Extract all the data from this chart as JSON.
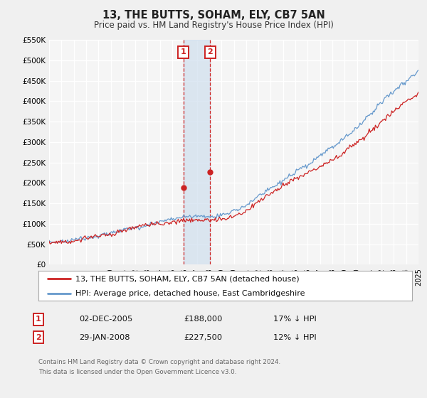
{
  "title": "13, THE BUTTS, SOHAM, ELY, CB7 5AN",
  "subtitle": "Price paid vs. HM Land Registry's House Price Index (HPI)",
  "legend_line1": "13, THE BUTTS, SOHAM, ELY, CB7 5AN (detached house)",
  "legend_line2": "HPI: Average price, detached house, East Cambridgeshire",
  "footnote1": "Contains HM Land Registry data © Crown copyright and database right 2024.",
  "footnote2": "This data is licensed under the Open Government Licence v3.0.",
  "sale1_date": "02-DEC-2005",
  "sale1_price": 188000,
  "sale1_hpi_text": "17% ↓ HPI",
  "sale1_x": 2005.92,
  "sale2_date": "29-JAN-2008",
  "sale2_price": 227500,
  "sale2_hpi_text": "12% ↓ HPI",
  "sale2_x": 2008.08,
  "ylim": [
    0,
    550000
  ],
  "xlim_start": 1995,
  "xlim_end": 2025,
  "hpi_color": "#6699cc",
  "price_color": "#cc2222",
  "background_color": "#f0f0f0",
  "plot_bg_color": "#f5f5f5",
  "grid_color": "#ffffff",
  "shade_color": "#ccdded"
}
